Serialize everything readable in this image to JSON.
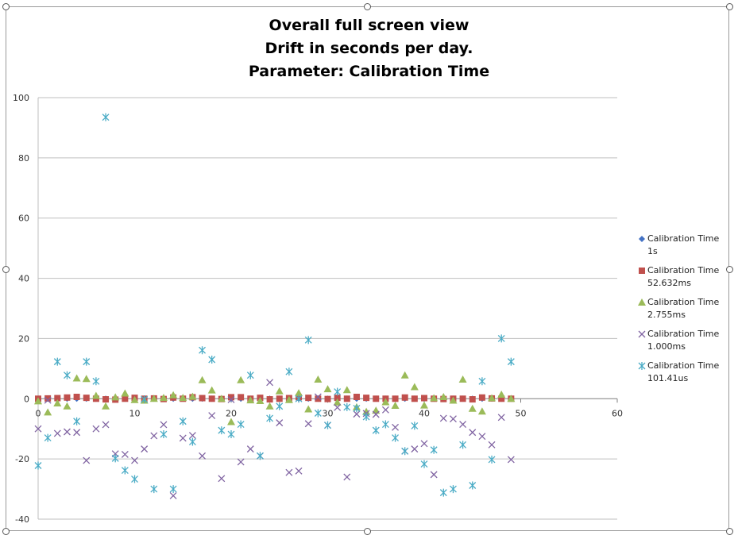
{
  "chart_data": {
    "type": "scatter",
    "title_lines": [
      "Overall full screen view",
      "Drift in seconds per day.",
      "Parameter: Calibration Time"
    ],
    "xlabel": "",
    "ylabel": "",
    "xlim": [
      0,
      60
    ],
    "ylim": [
      -40,
      100
    ],
    "x_ticks": [
      0,
      10,
      20,
      30,
      40,
      50,
      60
    ],
    "y_ticks": [
      -40,
      -20,
      0,
      20,
      40,
      60,
      80,
      100
    ],
    "grid": "horizontal",
    "legend_position": "right",
    "series": [
      {
        "name": "Calibration Time\n1s",
        "marker": "diamond",
        "color": "#4472c4",
        "x": [
          0,
          1,
          2,
          3,
          4,
          5,
          6,
          7,
          8,
          9,
          10,
          11,
          12,
          13,
          14,
          15,
          16,
          17,
          18,
          19,
          20,
          21,
          22,
          23,
          24,
          25,
          26,
          27,
          28,
          29,
          30,
          31,
          32,
          33,
          34,
          35,
          36,
          37,
          38,
          39,
          40,
          41,
          42,
          43,
          44,
          45,
          46,
          47,
          48,
          49
        ],
        "y": [
          0,
          0,
          0,
          0,
          0,
          0,
          0,
          0,
          0,
          0,
          0,
          0,
          0,
          0,
          0,
          0,
          0,
          0,
          0,
          0,
          0,
          0,
          0,
          0,
          0,
          0,
          0,
          0,
          0,
          0,
          0,
          0,
          0,
          0,
          0,
          0,
          0,
          0,
          0,
          0,
          0,
          0,
          0,
          0,
          0,
          0,
          0,
          0,
          0,
          0
        ]
      },
      {
        "name": "Calibration Time\n52.632ms",
        "marker": "square",
        "color": "#c0504d",
        "x": [
          0,
          1,
          2,
          3,
          4,
          5,
          6,
          7,
          8,
          9,
          10,
          11,
          12,
          13,
          14,
          15,
          16,
          17,
          18,
          19,
          20,
          21,
          22,
          23,
          24,
          25,
          26,
          27,
          28,
          29,
          30,
          31,
          32,
          33,
          34,
          35,
          36,
          37,
          38,
          39,
          40,
          41,
          42,
          43,
          44,
          45,
          46,
          47,
          48,
          49
        ],
        "y": [
          0,
          0.1,
          0.2,
          0.4,
          0.6,
          0.3,
          0,
          -0.2,
          -0.3,
          0,
          0.3,
          0,
          0.1,
          -0.1,
          0.4,
          0,
          0.5,
          0.2,
          0,
          -0.1,
          0.5,
          0.5,
          0,
          0.3,
          -0.2,
          0,
          0.2,
          0.5,
          0.3,
          0,
          -0.1,
          0.3,
          0,
          0.6,
          0.3,
          0,
          0,
          0,
          0.4,
          0,
          0.2,
          0,
          -0.1,
          0,
          0,
          -0.2,
          0.4,
          0.1,
          0,
          0
        ]
      },
      {
        "name": "Calibration Time\n2.755ms",
        "marker": "triangle",
        "color": "#9bbb59",
        "x": [
          0,
          1,
          2,
          3,
          4,
          5,
          6,
          7,
          8,
          9,
          10,
          11,
          12,
          13,
          14,
          15,
          16,
          17,
          18,
          19,
          20,
          21,
          22,
          23,
          24,
          25,
          26,
          27,
          28,
          29,
          30,
          31,
          32,
          33,
          34,
          35,
          36,
          37,
          38,
          39,
          40,
          41,
          42,
          43,
          44,
          45,
          46,
          47,
          48,
          49
        ],
        "y": [
          -0.8,
          -4.5,
          -1.5,
          -2.5,
          6.8,
          6.6,
          1,
          -2.5,
          0.5,
          1.8,
          -0.4,
          -0.6,
          0,
          0.3,
          1.2,
          0.3,
          0.7,
          6.2,
          2.8,
          0,
          -7.7,
          6.2,
          -0.5,
          -0.7,
          -2.5,
          2.5,
          -0.4,
          1.9,
          -3.5,
          6.4,
          3.2,
          -1.2,
          2.9,
          -2.8,
          -4.3,
          -3.9,
          -1.1,
          -2.3,
          7.8,
          3.9,
          -2.2,
          0.2,
          0.6,
          -0.6,
          6.4,
          -3.3,
          -4.2,
          0.2,
          1.4,
          0
        ]
      },
      {
        "name": "Calibration Time\n1.000ms",
        "marker": "x",
        "color": "#8064a2",
        "x": [
          0,
          1,
          2,
          3,
          4,
          5,
          6,
          7,
          8,
          9,
          10,
          11,
          12,
          13,
          14,
          15,
          16,
          17,
          18,
          19,
          20,
          21,
          22,
          23,
          24,
          25,
          26,
          27,
          28,
          29,
          30,
          31,
          32,
          33,
          34,
          35,
          36,
          37,
          38,
          39,
          40,
          41,
          42,
          43,
          44,
          45,
          46,
          47,
          48,
          49
        ],
        "y": [
          -10,
          -0.5,
          -11.5,
          -11,
          -11.2,
          -20.5,
          -10,
          -8.6,
          -18.3,
          -18.5,
          -20.5,
          -16.7,
          -12.3,
          -8.6,
          -32.2,
          -13.1,
          -12.2,
          -19,
          -5.6,
          -26.5,
          -0.3,
          -21,
          -16.7,
          -19,
          5.4,
          -8,
          -24.5,
          -24,
          -8.3,
          0.6,
          -8.8,
          -2.9,
          -26,
          -5.1,
          -4.9,
          -5.2,
          -3.7,
          -9.5,
          -17.4,
          -16.7,
          -14.9,
          -25.2,
          -6.5,
          -6.7,
          -8.5,
          -11.2,
          -12.5,
          -15.3,
          -6.2,
          -20.2
        ]
      },
      {
        "name": "Calibration Time\n101.41us",
        "marker": "star",
        "color": "#4bacc6",
        "x": [
          0,
          1,
          2,
          3,
          4,
          5,
          6,
          7,
          8,
          9,
          10,
          11,
          12,
          13,
          14,
          15,
          16,
          17,
          18,
          19,
          20,
          21,
          22,
          23,
          24,
          25,
          26,
          27,
          28,
          29,
          30,
          31,
          32,
          33,
          34,
          35,
          36,
          37,
          38,
          39,
          40,
          41,
          42,
          43,
          44,
          45,
          46,
          47,
          48,
          49
        ],
        "y": [
          -22.2,
          -13,
          12.3,
          7.8,
          -7.5,
          12.3,
          5.8,
          93.5,
          -19.8,
          -23.8,
          -26.7,
          -0.2,
          -30,
          -11.8,
          -30,
          -7.5,
          -14.3,
          16.1,
          13,
          -10.5,
          -11.8,
          -8.5,
          7.8,
          -19,
          -6.5,
          -2.5,
          9,
          0,
          19.5,
          -4.8,
          -8.8,
          2.3,
          -2.8,
          -3.2,
          -6,
          -10.5,
          -8.5,
          -13,
          -17.4,
          -9,
          -21.7,
          -17,
          -31.2,
          -30,
          -15.3,
          -28.8,
          5.8,
          -20.2,
          20,
          12.3
        ]
      }
    ]
  }
}
